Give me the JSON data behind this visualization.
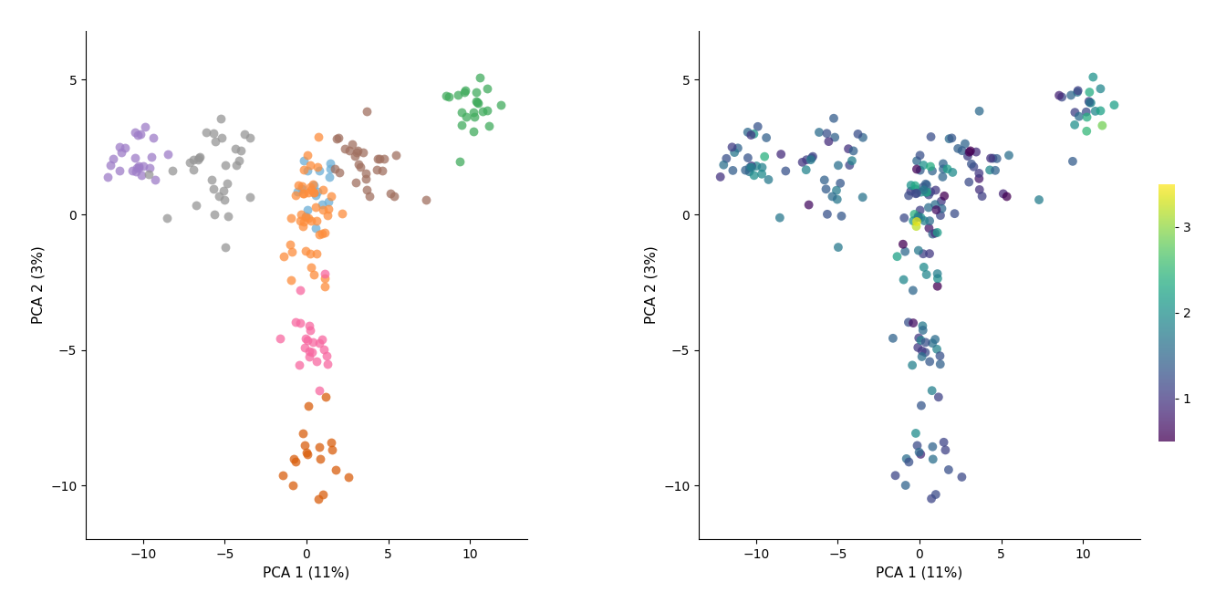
{
  "xlabel": "PCA 1 (11%)",
  "ylabel": "PCA 2 (3%)",
  "xlim": [
    -13.5,
    13.5
  ],
  "ylim": [
    -12,
    6.8
  ],
  "xticks": [
    -10,
    -5,
    0,
    5,
    10
  ],
  "yticks": [
    -10,
    -5,
    0,
    5
  ],
  "group_colors": {
    "1": "#6baed6",
    "2": "#fd8d3c",
    "3": "#41ab5d",
    "4": "#d95f0e",
    "5": "#9e7dc8",
    "6": "#a07060",
    "7": "#f768a1",
    "8": "#969696"
  },
  "colorbar_ticks": [
    1,
    2,
    3
  ],
  "colorbar_vmin": 0.5,
  "colorbar_vmax": 3.5,
  "alpha": 0.75,
  "point_size": 50
}
